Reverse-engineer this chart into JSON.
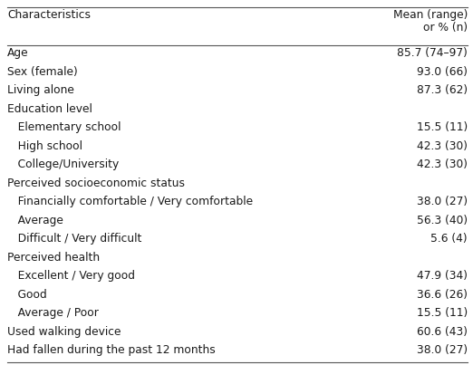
{
  "col_header_left": "Characteristics",
  "col_header_right_line1": "Mean (range)",
  "col_header_right_line2": "or % (n)",
  "rows": [
    {
      "label": "Age",
      "indent": 0,
      "value": "85.7 (74–97)"
    },
    {
      "label": "Sex (female)",
      "indent": 0,
      "value": "93.0 (66)"
    },
    {
      "label": "Living alone",
      "indent": 0,
      "value": "87.3 (62)"
    },
    {
      "label": "Education level",
      "indent": 0,
      "value": ""
    },
    {
      "label": "   Elementary school",
      "indent": 1,
      "value": "15.5 (11)"
    },
    {
      "label": "   High school",
      "indent": 1,
      "value": "42.3 (30)"
    },
    {
      "label": "   College/University",
      "indent": 1,
      "value": "42.3 (30)"
    },
    {
      "label": "Perceived socioeconomic status",
      "indent": 0,
      "value": ""
    },
    {
      "label": "   Financially comfortable / Very comfortable",
      "indent": 1,
      "value": "38.0 (27)"
    },
    {
      "label": "   Average",
      "indent": 1,
      "value": "56.3 (40)"
    },
    {
      "label": "   Difficult / Very difficult",
      "indent": 1,
      "value": "5.6 (4)"
    },
    {
      "label": "Perceived health",
      "indent": 0,
      "value": ""
    },
    {
      "label": "   Excellent / Very good",
      "indent": 1,
      "value": "47.9 (34)"
    },
    {
      "label": "   Good",
      "indent": 1,
      "value": "36.6 (26)"
    },
    {
      "label": "   Average / Poor",
      "indent": 1,
      "value": "15.5 (11)"
    },
    {
      "label": "Used walking device",
      "indent": 0,
      "value": "60.6 (43)"
    },
    {
      "label": "Had fallen during the past 12 months",
      "indent": 0,
      "value": "38.0 (27)"
    }
  ],
  "bg_color": "#ffffff",
  "text_color": "#1a1a1a",
  "font_size": 8.8,
  "line_color": "#555555",
  "fig_width": 5.22,
  "fig_height": 4.03,
  "dpi": 100
}
